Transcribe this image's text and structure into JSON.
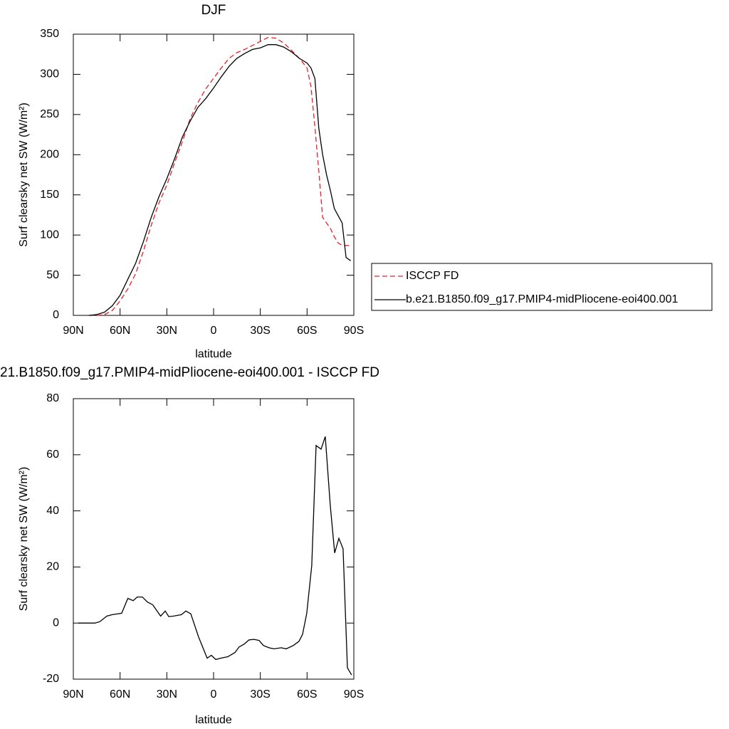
{
  "chart_data": [
    {
      "type": "line",
      "title": "DJF",
      "x_label": "latitude",
      "y_label": "Surf clearsky net SW (W/m²)",
      "x": [
        80,
        75,
        70,
        65,
        60,
        55,
        50,
        45,
        40,
        35,
        30,
        25,
        20,
        15,
        10,
        5,
        0,
        -5,
        -10,
        -15,
        -20,
        -25,
        -30,
        -35,
        -40,
        -45,
        -50,
        -55,
        -60,
        -62.5,
        -65,
        -67.5,
        -70,
        -72.5,
        -75,
        -77.5,
        -80,
        -82.5,
        -85,
        -88
      ],
      "series": [
        {
          "name": "ISCCP FD",
          "color": "#e8202a",
          "dashed": true,
          "values": [
            0,
            0,
            1,
            6,
            18,
            33,
            52,
            80,
            112,
            140,
            162,
            190,
            216,
            245,
            265,
            282,
            295,
            308,
            320,
            327,
            331,
            336,
            341,
            346,
            345,
            339,
            330,
            320,
            308,
            285,
            235,
            180,
            122,
            115,
            108,
            98,
            90,
            87,
            87,
            87
          ]
        },
        {
          "name": "b.e21.B1850.f09_g17.PMIP4-midPliocene-eoi400.001",
          "color": "#000000",
          "dashed": false,
          "values": [
            0,
            1,
            4,
            12,
            25,
            45,
            65,
            92,
            122,
            148,
            170,
            195,
            222,
            242,
            259,
            270,
            283,
            297,
            310,
            320,
            326,
            331,
            333,
            337,
            337,
            334,
            328,
            320,
            314,
            308,
            295,
            233,
            200,
            175,
            155,
            133,
            124,
            115,
            72,
            68
          ]
        }
      ],
      "xlim": [
        90,
        -90
      ],
      "xticks": [
        {
          "value": 90,
          "label": "90N"
        },
        {
          "value": 60,
          "label": "60N"
        },
        {
          "value": 30,
          "label": "30N"
        },
        0,
        {
          "value": -30,
          "label": "30S"
        },
        {
          "value": -60,
          "label": "60S"
        },
        {
          "value": -90,
          "label": "90S"
        }
      ],
      "ylim": [
        0,
        350
      ],
      "yticks": [
        0,
        50,
        100,
        150,
        200,
        250,
        300,
        350
      ],
      "legend": "right"
    },
    {
      "type": "line",
      "title": "21.B1850.f09_g17.PMIP4-midPliocene-eoi400.001 - ISCCP FD",
      "x_label": "latitude",
      "y_label": "Surf clearsky net SW (W/m²)",
      "x": [
        86.8,
        76,
        73,
        68.5,
        65,
        59,
        55,
        51.6,
        49,
        45.7,
        42.5,
        39,
        36.5,
        34,
        31,
        28.8,
        25.6,
        20.6,
        17.8,
        14.6,
        9.6,
        4.1,
        1.4,
        -1.4,
        -4.6,
        -9.1,
        -13.7,
        -16.4,
        -19.6,
        -22.8,
        -26,
        -29.2,
        -32,
        -35.6,
        -38.8,
        -43.4,
        -46.6,
        -51.2,
        -54.8,
        -57.1,
        -59.8,
        -63,
        -65.8,
        -69,
        -71.7,
        -74.9,
        -77.7,
        -80.4,
        -83.1,
        -85.9,
        -88.6
      ],
      "series": [
        {
          "color": "#000000",
          "dashed": false,
          "values": [
            0,
            0,
            0.5,
            2.5,
            3,
            3.5,
            8.8,
            8,
            9.3,
            9.3,
            7.5,
            6.5,
            4.5,
            2.5,
            4.3,
            2.3,
            2.5,
            3,
            4.3,
            3.3,
            -5,
            -12.5,
            -11.5,
            -13,
            -12.5,
            -12,
            -10.5,
            -8.5,
            -7.5,
            -6,
            -5.8,
            -6.2,
            -8,
            -8.8,
            -9.2,
            -8.8,
            -9.2,
            -8,
            -6.5,
            -4,
            3.5,
            20.5,
            63.3,
            62,
            66.5,
            42,
            25,
            30.2,
            26.5,
            -16,
            -18.5
          ]
        }
      ],
      "xlim": [
        90,
        -90
      ],
      "xticks": [
        {
          "value": 90,
          "label": "90N"
        },
        {
          "value": 60,
          "label": "60N"
        },
        {
          "value": 30,
          "label": "30N"
        },
        0,
        {
          "value": -30,
          "label": "30S"
        },
        {
          "value": -60,
          "label": "60S"
        },
        {
          "value": -90,
          "label": "90S"
        }
      ],
      "ylim": [
        -20,
        80
      ],
      "yticks": [
        -20,
        0,
        20,
        40,
        60,
        80
      ]
    }
  ]
}
